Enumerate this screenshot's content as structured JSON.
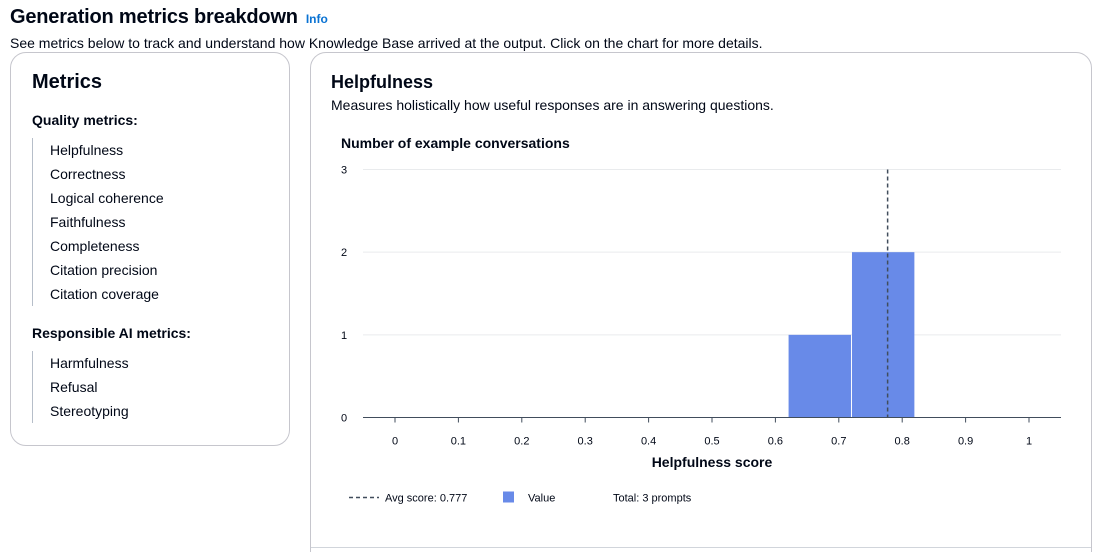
{
  "header": {
    "title": "Generation metrics breakdown",
    "info_label": "Info",
    "description": "See metrics below to track and understand how Knowledge Base arrived at the output. Click on the chart for more details."
  },
  "metrics_panel": {
    "title": "Metrics",
    "quality_title": "Quality metrics:",
    "quality_items": [
      "Helpfulness",
      "Correctness",
      "Logical coherence",
      "Faithfulness",
      "Completeness",
      "Citation precision",
      "Citation coverage"
    ],
    "responsible_title": "Responsible AI metrics:",
    "responsible_items": [
      "Harmfulness",
      "Refusal",
      "Stereotyping"
    ]
  },
  "detail_panel": {
    "title": "Helpfulness",
    "description": "Measures holistically how useful responses are in answering questions."
  },
  "colors": {
    "bar": "#688ae8",
    "avg_line": "#414d5c",
    "grid": "#e9ebed",
    "axis": "#414d5c"
  },
  "chart_data": {
    "type": "bar",
    "title": "Number of example conversations",
    "xlabel": "Helpfulness score",
    "ylabel": "Number of example conversations",
    "xlim": [
      0,
      1
    ],
    "ylim": [
      0,
      3
    ],
    "x_ticks": [
      "0",
      "0.1",
      "0.2",
      "0.3",
      "0.4",
      "0.5",
      "0.6",
      "0.7",
      "0.8",
      "0.9",
      "1"
    ],
    "y_ticks": [
      "0",
      "1",
      "2",
      "3"
    ],
    "bins": [
      {
        "x0": 0.62,
        "x1": 0.72,
        "value": 1
      },
      {
        "x0": 0.72,
        "x1": 0.82,
        "value": 2
      }
    ],
    "avg_score": 0.777,
    "legend": {
      "avg": "Avg score: 0.777",
      "value": "Value",
      "total": "Total: 3 prompts"
    }
  }
}
